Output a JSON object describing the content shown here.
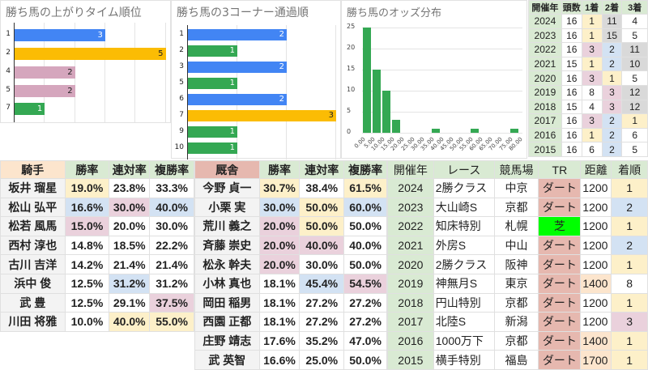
{
  "chart_data": [
    {
      "type": "bar",
      "orientation": "horizontal",
      "title": "勝ち馬の上がりタイム順位",
      "categories": [
        "1",
        "2",
        "4",
        "5",
        "7"
      ],
      "values": [
        3,
        5,
        2,
        2,
        1
      ],
      "colors": [
        "#4285f4",
        "#fbbc04",
        "#d5a6bd",
        "#d5a6bd",
        "#34a853"
      ],
      "label_colors": [
        "#ffffff",
        "#222222",
        "#222222",
        "#222222",
        "#ffffff"
      ],
      "xlim": [
        0,
        5
      ]
    },
    {
      "type": "bar",
      "orientation": "horizontal",
      "title": "勝ち馬の3コーナー通過順",
      "categories": [
        "1",
        "2",
        "3",
        "5",
        "6",
        "7",
        "9",
        "10"
      ],
      "values": [
        2,
        1,
        2,
        1,
        2,
        3,
        1,
        1
      ],
      "colors": [
        "#4285f4",
        "#34a853",
        "#4285f4",
        "#34a853",
        "#4285f4",
        "#fbbc04",
        "#34a853",
        "#34a853"
      ],
      "label_colors": [
        "#ffffff",
        "#ffffff",
        "#ffffff",
        "#ffffff",
        "#ffffff",
        "#222222",
        "#ffffff",
        "#ffffff"
      ],
      "xlim": [
        0,
        3
      ]
    },
    {
      "type": "bar",
      "title": "勝ち馬のオッズ分布",
      "bin_starts": [
        0,
        5,
        10,
        15,
        20,
        25,
        30,
        35,
        40,
        45,
        50,
        55,
        60,
        65,
        70,
        75
      ],
      "values": [
        25,
        15,
        10,
        3,
        0,
        0,
        0,
        1,
        0,
        0,
        0,
        1,
        0,
        0,
        0,
        1
      ],
      "x_tick_labels": [
        "0.00",
        "5.00",
        "10.00",
        "15.00",
        "20.00",
        "25.00",
        "30.00",
        "35.00",
        "40.00",
        "45.00",
        "50.00",
        "55.00",
        "60.00",
        "65.00",
        "70.00",
        "75.00",
        "80.00"
      ],
      "y_tick_labels": [
        "0",
        "5",
        "10",
        "15",
        "20",
        "25"
      ],
      "ylim": [
        0,
        25
      ],
      "color": "#34a853"
    }
  ],
  "top_table": {
    "headers": [
      "開催年",
      "頭数",
      "1着",
      "2着",
      "3着"
    ],
    "rows": [
      [
        {
          "v": "2024"
        },
        {
          "v": "16"
        },
        {
          "v": "1",
          "c": "y"
        },
        {
          "v": "11",
          "c": "g"
        },
        {
          "v": "4"
        }
      ],
      [
        {
          "v": "2023"
        },
        {
          "v": "16"
        },
        {
          "v": "1",
          "c": "y"
        },
        {
          "v": "15",
          "c": "g"
        },
        {
          "v": "5"
        }
      ],
      [
        {
          "v": "2022"
        },
        {
          "v": "16"
        },
        {
          "v": "3",
          "c": "p"
        },
        {
          "v": "2",
          "c": "b"
        },
        {
          "v": "11",
          "c": "g"
        }
      ],
      [
        {
          "v": "2021"
        },
        {
          "v": "15"
        },
        {
          "v": "1",
          "c": "y"
        },
        {
          "v": "2",
          "c": "b"
        },
        {
          "v": "10",
          "c": "g"
        }
      ],
      [
        {
          "v": "2020"
        },
        {
          "v": "16"
        },
        {
          "v": "3",
          "c": "p"
        },
        {
          "v": "1",
          "c": "y"
        },
        {
          "v": "5"
        }
      ],
      [
        {
          "v": "2019"
        },
        {
          "v": "16"
        },
        {
          "v": "8"
        },
        {
          "v": "3",
          "c": "p"
        },
        {
          "v": "12",
          "c": "g"
        }
      ],
      [
        {
          "v": "2018"
        },
        {
          "v": "15"
        },
        {
          "v": "4"
        },
        {
          "v": "3",
          "c": "p"
        },
        {
          "v": "12",
          "c": "g"
        }
      ],
      [
        {
          "v": "2017"
        },
        {
          "v": "16"
        },
        {
          "v": "3",
          "c": "p"
        },
        {
          "v": "2",
          "c": "b"
        },
        {
          "v": "1",
          "c": "y"
        }
      ],
      [
        {
          "v": "2016"
        },
        {
          "v": "16"
        },
        {
          "v": "1",
          "c": "y"
        },
        {
          "v": "2",
          "c": "b"
        },
        {
          "v": "6"
        }
      ],
      [
        {
          "v": "2015"
        },
        {
          "v": "16"
        },
        {
          "v": "6"
        },
        {
          "v": "2",
          "c": "b"
        },
        {
          "v": "5"
        }
      ]
    ]
  },
  "jockey_table": {
    "headers": [
      "騎手",
      "勝率",
      "連対率",
      "複勝率"
    ],
    "rows": [
      [
        {
          "v": "坂井 瑠星"
        },
        {
          "v": "19.0%",
          "c": "y"
        },
        {
          "v": "23.8%"
        },
        {
          "v": "33.3%"
        }
      ],
      [
        {
          "v": "松山 弘平"
        },
        {
          "v": "16.6%",
          "c": "b"
        },
        {
          "v": "30.0%",
          "c": "p"
        },
        {
          "v": "40.0%",
          "c": "b"
        }
      ],
      [
        {
          "v": "松若 風馬"
        },
        {
          "v": "15.0%",
          "c": "p"
        },
        {
          "v": "20.0%"
        },
        {
          "v": "30.0%"
        }
      ],
      [
        {
          "v": "西村 淳也"
        },
        {
          "v": "14.8%"
        },
        {
          "v": "18.5%"
        },
        {
          "v": "22.2%"
        }
      ],
      [
        {
          "v": "古川 吉洋"
        },
        {
          "v": "14.2%"
        },
        {
          "v": "21.4%"
        },
        {
          "v": "21.4%"
        }
      ],
      [
        {
          "v": "浜中 俊"
        },
        {
          "v": "12.5%"
        },
        {
          "v": "31.2%",
          "c": "b"
        },
        {
          "v": "31.2%"
        }
      ],
      [
        {
          "v": "武 豊"
        },
        {
          "v": "12.5%"
        },
        {
          "v": "29.1%"
        },
        {
          "v": "37.5%",
          "c": "p"
        }
      ],
      [
        {
          "v": "川田 将雅"
        },
        {
          "v": "10.0%"
        },
        {
          "v": "40.0%",
          "c": "y"
        },
        {
          "v": "55.0%",
          "c": "y"
        }
      ]
    ]
  },
  "trainer_table": {
    "headers": [
      "厩舎",
      "勝率",
      "連対率",
      "複勝率"
    ],
    "rows": [
      [
        {
          "v": "今野 貞一"
        },
        {
          "v": "30.7%",
          "c": "y"
        },
        {
          "v": "38.4%"
        },
        {
          "v": "61.5%",
          "c": "y"
        }
      ],
      [
        {
          "v": "小栗 実"
        },
        {
          "v": "30.0%",
          "c": "b"
        },
        {
          "v": "50.0%",
          "c": "y"
        },
        {
          "v": "60.0%",
          "c": "b"
        }
      ],
      [
        {
          "v": "荒川 義之"
        },
        {
          "v": "20.0%",
          "c": "p"
        },
        {
          "v": "50.0%",
          "c": "y"
        },
        {
          "v": "50.0%"
        }
      ],
      [
        {
          "v": "斉藤 崇史"
        },
        {
          "v": "20.0%",
          "c": "p"
        },
        {
          "v": "40.0%",
          "c": "p"
        },
        {
          "v": "40.0%"
        }
      ],
      [
        {
          "v": "松永 幹夫"
        },
        {
          "v": "20.0%",
          "c": "p"
        },
        {
          "v": "30.0%"
        },
        {
          "v": "50.0%"
        }
      ],
      [
        {
          "v": "小林 真也"
        },
        {
          "v": "18.1%"
        },
        {
          "v": "45.4%",
          "c": "b"
        },
        {
          "v": "54.5%",
          "c": "p"
        }
      ],
      [
        {
          "v": "岡田 稲男"
        },
        {
          "v": "18.1%"
        },
        {
          "v": "27.2%"
        },
        {
          "v": "27.2%"
        }
      ],
      [
        {
          "v": "西園 正都"
        },
        {
          "v": "18.1%"
        },
        {
          "v": "27.2%"
        },
        {
          "v": "27.2%"
        }
      ],
      [
        {
          "v": "庄野 靖志"
        },
        {
          "v": "17.6%"
        },
        {
          "v": "35.2%"
        },
        {
          "v": "47.0%"
        }
      ],
      [
        {
          "v": "武 英智"
        },
        {
          "v": "16.6%"
        },
        {
          "v": "25.0%"
        },
        {
          "v": "50.0%"
        }
      ]
    ]
  },
  "race_table": {
    "headers": [
      "開催年",
      "レース",
      "競馬場",
      "TR",
      "距離",
      "着順"
    ],
    "rows": [
      [
        {
          "v": "2024"
        },
        {
          "v": "2勝クラス"
        },
        {
          "v": "中京"
        },
        {
          "v": "ダート",
          "c": "d"
        },
        {
          "v": "1200"
        },
        {
          "v": "1",
          "c": "y"
        }
      ],
      [
        {
          "v": "2023"
        },
        {
          "v": "大山崎S"
        },
        {
          "v": "京都"
        },
        {
          "v": "ダート",
          "c": "d"
        },
        {
          "v": "1200"
        },
        {
          "v": "2",
          "c": "b"
        }
      ],
      [
        {
          "v": "2022"
        },
        {
          "v": "知床特別"
        },
        {
          "v": "札幌"
        },
        {
          "v": "芝",
          "c": "t"
        },
        {
          "v": "1200"
        },
        {
          "v": "1",
          "c": "y"
        }
      ],
      [
        {
          "v": "2021"
        },
        {
          "v": "外房S"
        },
        {
          "v": "中山"
        },
        {
          "v": "ダート",
          "c": "d"
        },
        {
          "v": "1200"
        },
        {
          "v": "2",
          "c": "b"
        }
      ],
      [
        {
          "v": "2020"
        },
        {
          "v": "2勝クラス"
        },
        {
          "v": "阪神"
        },
        {
          "v": "ダート",
          "c": "d"
        },
        {
          "v": "1200"
        },
        {
          "v": "1",
          "c": "y"
        }
      ],
      [
        {
          "v": "2019"
        },
        {
          "v": "神無月S"
        },
        {
          "v": "東京"
        },
        {
          "v": "ダート",
          "c": "d"
        },
        {
          "v": "1400",
          "c": "o"
        },
        {
          "v": "8"
        }
      ],
      [
        {
          "v": "2018"
        },
        {
          "v": "円山特別"
        },
        {
          "v": "京都"
        },
        {
          "v": "ダート",
          "c": "d"
        },
        {
          "v": "1200"
        },
        {
          "v": "1",
          "c": "y"
        }
      ],
      [
        {
          "v": "2017"
        },
        {
          "v": "北陸S"
        },
        {
          "v": "新潟"
        },
        {
          "v": "ダート",
          "c": "d"
        },
        {
          "v": "1200"
        },
        {
          "v": "3",
          "c": "p"
        }
      ],
      [
        {
          "v": "2016"
        },
        {
          "v": "1000万下"
        },
        {
          "v": "京都"
        },
        {
          "v": "ダート",
          "c": "d"
        },
        {
          "v": "1400",
          "c": "o"
        },
        {
          "v": "1",
          "c": "y"
        }
      ],
      [
        {
          "v": "2015"
        },
        {
          "v": "横手特別"
        },
        {
          "v": "福島"
        },
        {
          "v": "ダート",
          "c": "d"
        },
        {
          "v": "1700",
          "c": "o"
        },
        {
          "v": "1",
          "c": "y"
        }
      ]
    ]
  }
}
